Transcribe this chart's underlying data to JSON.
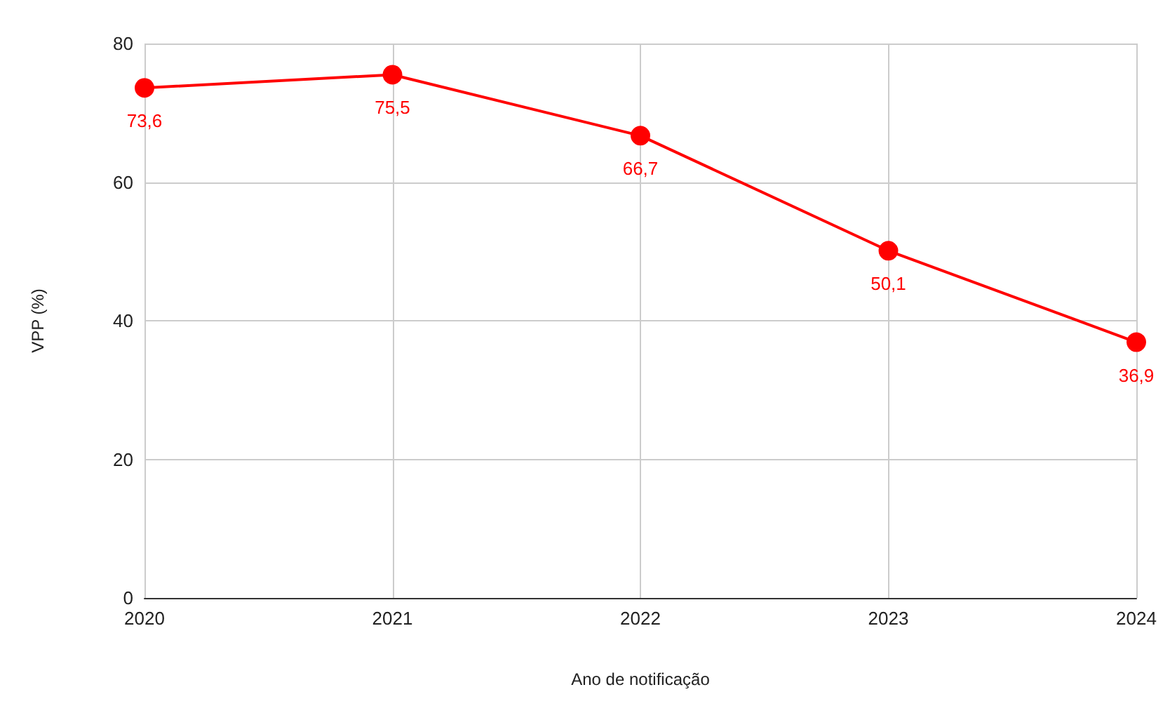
{
  "chart_data": {
    "type": "line",
    "xlabel": "Ano de notificação",
    "ylabel": "VPP (%)",
    "categories": [
      "2020",
      "2021",
      "2022",
      "2023",
      "2024"
    ],
    "series": [
      {
        "color": "#ff0000",
        "values": [
          73.6,
          75.5,
          66.7,
          50.1,
          36.9
        ],
        "value_labels": [
          "73,6",
          "75,5",
          "66,7",
          "50,1",
          "36,9"
        ]
      }
    ],
    "ylim": [
      0,
      80
    ],
    "yticks": [
      0,
      20,
      40,
      60,
      80
    ],
    "grid": true,
    "marker": "circle",
    "line_style": "solid"
  }
}
